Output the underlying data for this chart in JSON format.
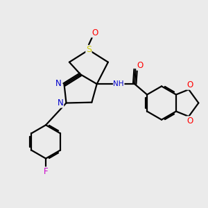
{
  "background_color": "#ebebeb",
  "bond_color": "#000000",
  "atom_colors": {
    "N": "#0000cc",
    "O": "#ff0000",
    "S": "#cccc00",
    "F": "#cc00cc",
    "C": "#000000"
  },
  "figsize": [
    3.0,
    3.0
  ],
  "dpi": 100,
  "lw": 1.6
}
